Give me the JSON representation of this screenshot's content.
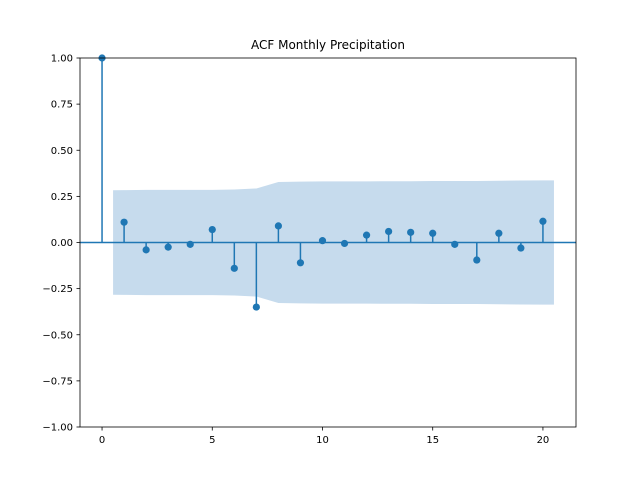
{
  "chart_data": {
    "type": "stem",
    "title": "ACF Monthly Precipitation",
    "xlabel": "",
    "ylabel": "",
    "xlim": [
      -1,
      21.5
    ],
    "ylim": [
      -1.0,
      1.0
    ],
    "xticks": [
      0,
      5,
      10,
      15,
      20
    ],
    "xtick_labels": [
      "0",
      "5",
      "10",
      "15",
      "20"
    ],
    "yticks": [
      -1.0,
      -0.75,
      -0.5,
      -0.25,
      0.0,
      0.25,
      0.5,
      0.75,
      1.0
    ],
    "ytick_labels": [
      "−1.00",
      "−0.75",
      "−0.50",
      "−0.25",
      "0.00",
      "0.25",
      "0.50",
      "0.75",
      "1.00"
    ],
    "grid": false,
    "series": [
      {
        "lags": [
          0,
          1,
          2,
          3,
          4,
          5,
          6,
          7,
          8,
          9,
          10,
          11,
          12,
          13,
          14,
          15,
          16,
          17,
          18,
          19,
          20
        ],
        "values": [
          1.0,
          0.11,
          -0.04,
          -0.025,
          -0.01,
          0.07,
          -0.14,
          -0.35,
          0.09,
          -0.11,
          0.01,
          -0.005,
          0.04,
          0.06,
          0.055,
          0.05,
          -0.01,
          -0.095,
          0.05,
          -0.03,
          0.115
        ],
        "color": "#1f77b4"
      }
    ],
    "confidence_band": {
      "lags": [
        0.5,
        1,
        2,
        3,
        4,
        5,
        6,
        7,
        8,
        9,
        10,
        11,
        12,
        13,
        14,
        15,
        16,
        17,
        18,
        19,
        20,
        20.5
      ],
      "upper": [
        0.283,
        0.284,
        0.285,
        0.285,
        0.285,
        0.285,
        0.287,
        0.293,
        0.328,
        0.33,
        0.331,
        0.331,
        0.331,
        0.332,
        0.332,
        0.333,
        0.333,
        0.333,
        0.335,
        0.336,
        0.337,
        0.337
      ],
      "lower": [
        -0.283,
        -0.284,
        -0.285,
        -0.285,
        -0.285,
        -0.285,
        -0.287,
        -0.293,
        -0.328,
        -0.33,
        -0.331,
        -0.331,
        -0.331,
        -0.332,
        -0.332,
        -0.333,
        -0.333,
        -0.333,
        -0.335,
        -0.336,
        -0.337,
        -0.337
      ],
      "color": "#c6dbed"
    },
    "zero_line": {
      "y": 0,
      "color": "#1f77b4"
    }
  }
}
